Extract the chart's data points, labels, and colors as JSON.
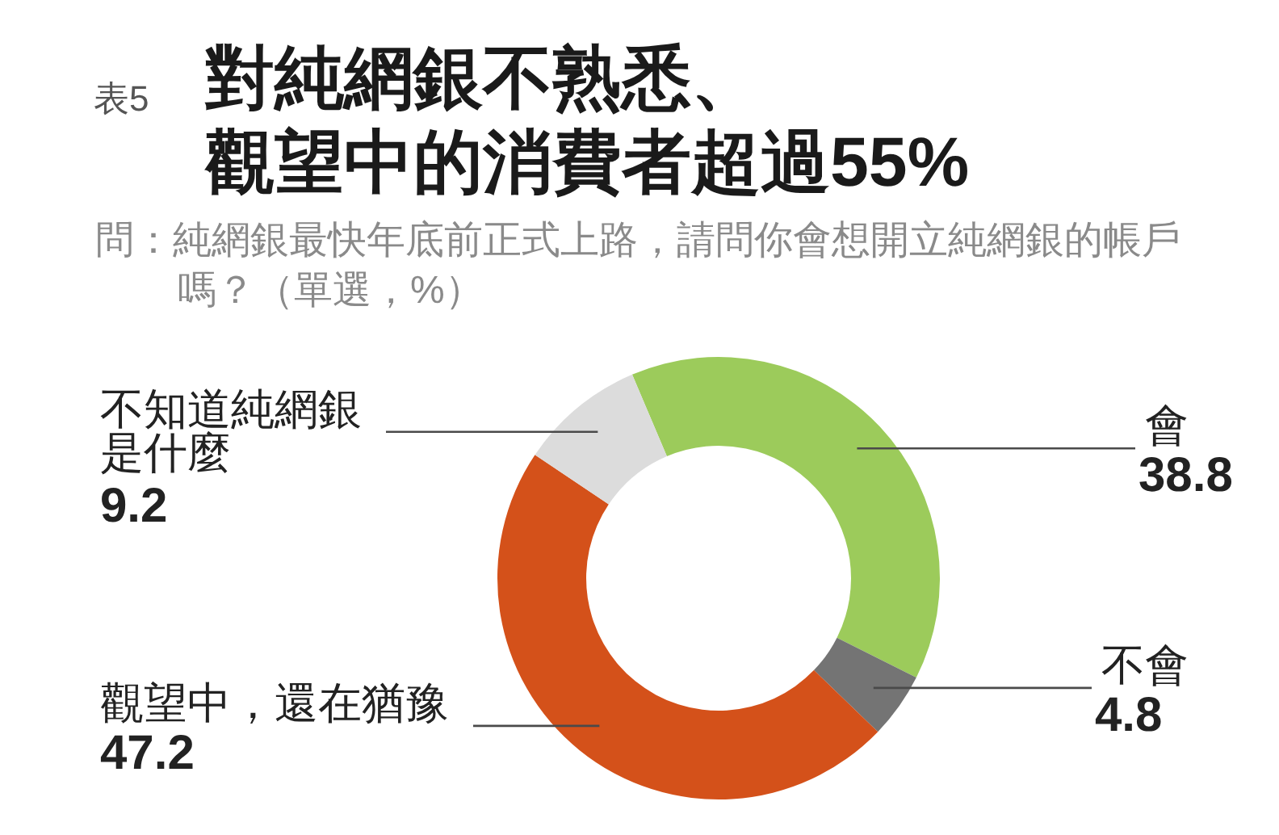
{
  "chart_data": {
    "type": "donut",
    "title": "對純網銀不熟悉、觀望中的消費者超過55%",
    "subtitle": "問：純網銀最快年底前正式上路，請問你會想開立純網銀的帳戶嗎？（單選，%）",
    "annotations": [
      "表5"
    ],
    "categories": [
      "會",
      "不會",
      "觀望中，還在猶豫",
      "不知道純網銀是什麼"
    ],
    "values": [
      38.8,
      4.8,
      47.2,
      9.2
    ],
    "colors": [
      "#9ccb5b",
      "#747474",
      "#d4511a",
      "#dcdcdc"
    ],
    "data_labels": true
  }
}
